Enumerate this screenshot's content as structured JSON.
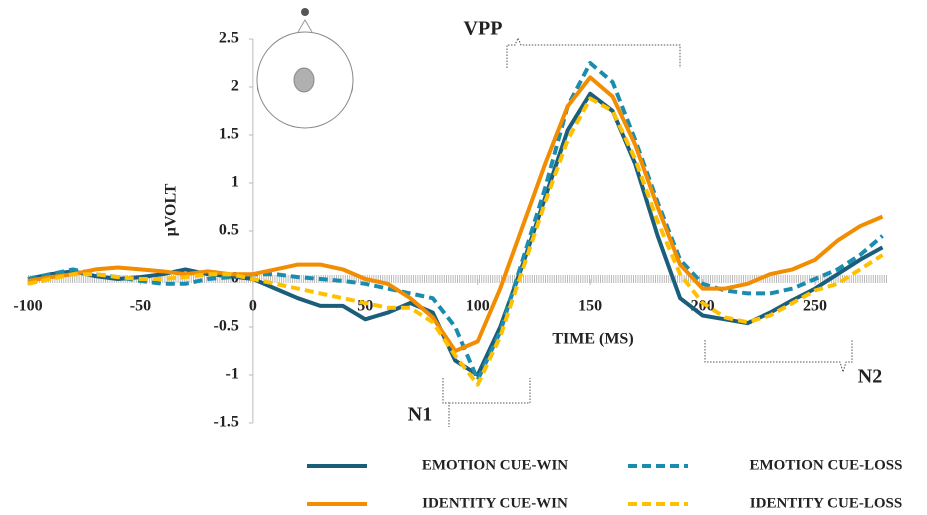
{
  "chart_data": {
    "type": "line",
    "x_label": "TIME (MS)",
    "y_label": "µVOLT",
    "annotations": [
      "VPP",
      "N1",
      "N2"
    ],
    "x": [
      -100,
      -90,
      -80,
      -70,
      -60,
      -50,
      -40,
      -30,
      -20,
      -10,
      0,
      10,
      20,
      30,
      40,
      50,
      60,
      70,
      80,
      90,
      100,
      110,
      120,
      130,
      140,
      150,
      160,
      170,
      180,
      190,
      200,
      210,
      220,
      230,
      240,
      250,
      260,
      270,
      280
    ],
    "series": [
      {
        "name": "EMOTION CUE-WIN",
        "color": "#1b5e7b",
        "dash": false,
        "values": [
          0,
          0.05,
          0.08,
          0.03,
          0,
          0.02,
          0.05,
          0.1,
          0.05,
          0.03,
          0,
          -0.1,
          -0.2,
          -0.28,
          -0.28,
          -0.42,
          -0.35,
          -0.25,
          -0.35,
          -0.85,
          -1.0,
          -0.5,
          0.15,
          0.85,
          1.55,
          1.93,
          1.75,
          1.2,
          0.45,
          -0.2,
          -0.38,
          -0.42,
          -0.46,
          -0.35,
          -0.22,
          -0.1,
          0.05,
          0.2,
          0.33
        ]
      },
      {
        "name": "EMOTION CUE-LOSS",
        "color": "#1a8cae",
        "dash": true,
        "values": [
          0,
          0.05,
          0.1,
          0.05,
          0.02,
          -0.02,
          -0.05,
          -0.05,
          0,
          0.02,
          0.05,
          0.05,
          0.02,
          0,
          -0.02,
          -0.05,
          -0.1,
          -0.15,
          -0.2,
          -0.5,
          -1.05,
          -0.55,
          0.2,
          0.95,
          1.8,
          2.25,
          2.05,
          1.45,
          0.8,
          0.2,
          -0.05,
          -0.12,
          -0.15,
          -0.15,
          -0.1,
          0,
          0.1,
          0.25,
          0.45
        ]
      },
      {
        "name": "IDENTITY CUE-WIN",
        "color": "#f28c00",
        "dash": false,
        "values": [
          -0.02,
          0.02,
          0.05,
          0.1,
          0.12,
          0.1,
          0.08,
          0.05,
          0.08,
          0.05,
          0.05,
          0.1,
          0.15,
          0.15,
          0.1,
          0,
          -0.05,
          -0.2,
          -0.4,
          -0.75,
          -0.65,
          -0.1,
          0.55,
          1.2,
          1.8,
          2.1,
          1.9,
          1.4,
          0.75,
          0.15,
          -0.1,
          -0.1,
          -0.05,
          0.05,
          0.1,
          0.2,
          0.4,
          0.55,
          0.65
        ]
      },
      {
        "name": "IDENTITY CUE-LOSS",
        "color": "#ffc000",
        "dash": true,
        "values": [
          -0.05,
          0,
          0.05,
          0.05,
          0.02,
          0,
          0,
          0.02,
          0.05,
          0.05,
          0,
          -0.05,
          -0.1,
          -0.15,
          -0.2,
          -0.25,
          -0.3,
          -0.3,
          -0.45,
          -0.8,
          -1.1,
          -0.6,
          0.1,
          0.8,
          1.45,
          1.88,
          1.75,
          1.25,
          0.6,
          0.05,
          -0.25,
          -0.4,
          -0.45,
          -0.38,
          -0.25,
          -0.12,
          -0.05,
          0.1,
          0.25
        ]
      }
    ],
    "xlim": [
      -100,
      282
    ],
    "xticks": [
      -100,
      -50,
      0,
      50,
      100,
      150,
      200,
      250
    ],
    "ylim": [
      -1.5,
      2.5
    ],
    "yticks": [
      -1.5,
      -1,
      -0.5,
      0,
      0.5,
      1,
      1.5,
      2,
      2.5
    ],
    "grid": false
  }
}
